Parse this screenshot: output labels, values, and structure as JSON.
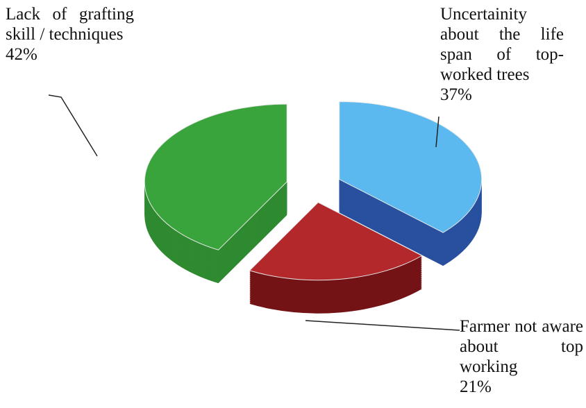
{
  "chart_data": {
    "type": "pie3d",
    "categories": [
      "Uncertainity about the life span of top-worked trees",
      "Farmer not aware about top working",
      "Lack of grafting skill / techniques"
    ],
    "values": [
      37,
      21,
      42
    ],
    "value_labels": [
      "37%",
      "21%",
      "42%"
    ],
    "colors": [
      "#5cb9ef",
      "#b3282b",
      "#3aa43c"
    ],
    "side_colors": [
      "#28509f",
      "#741316",
      "#2f8a30"
    ]
  }
}
